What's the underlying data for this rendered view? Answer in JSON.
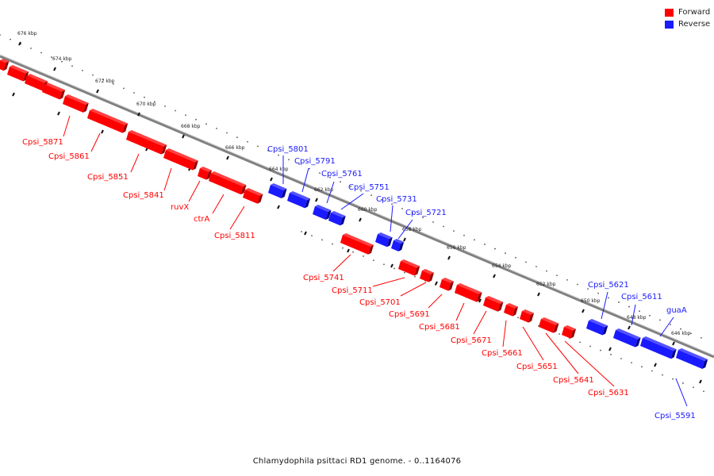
{
  "legend": {
    "forward_label": "Forward",
    "reverse_label": "Reverse",
    "forward_color": "#ff0000",
    "reverse_color": "#1a1aff"
  },
  "caption": "Chlamydophila psittaci RD1 genome. - 0..1164076",
  "ruler_ticks": [
    "676 kbp",
    "674 kbp",
    "672 kbp",
    "670 kbp",
    "668 kbp",
    "666 kbp",
    "664 kbp",
    "662 kbp",
    "660 kbp",
    "658 kbp",
    "656 kbp",
    "654 kbp",
    "652 kbp",
    "650 kbp",
    "648 kbp",
    "646 kbp"
  ],
  "forward_genes": [
    "Cpsi_5871",
    "Cpsi_5861",
    "Cpsi_5851",
    "Cpsi_5841",
    "ruvX",
    "ctrA",
    "Cpsi_5811",
    "Cpsi_5741",
    "Cpsi_5711",
    "Cpsi_5701",
    "Cpsi_5691",
    "Cpsi_5681",
    "Cpsi_5671",
    "Cpsi_5661",
    "Cpsi_5651",
    "Cpsi_5641",
    "Cpsi_5631"
  ],
  "reverse_genes": [
    "Cpsi_5801",
    "Cpsi_5791",
    "Cpsi_5761",
    "Cpsi_5751",
    "Cpsi_5731",
    "Cpsi_5721",
    "Cpsi_5621",
    "Cpsi_5611",
    "guaA",
    "Cpsi_5591"
  ]
}
